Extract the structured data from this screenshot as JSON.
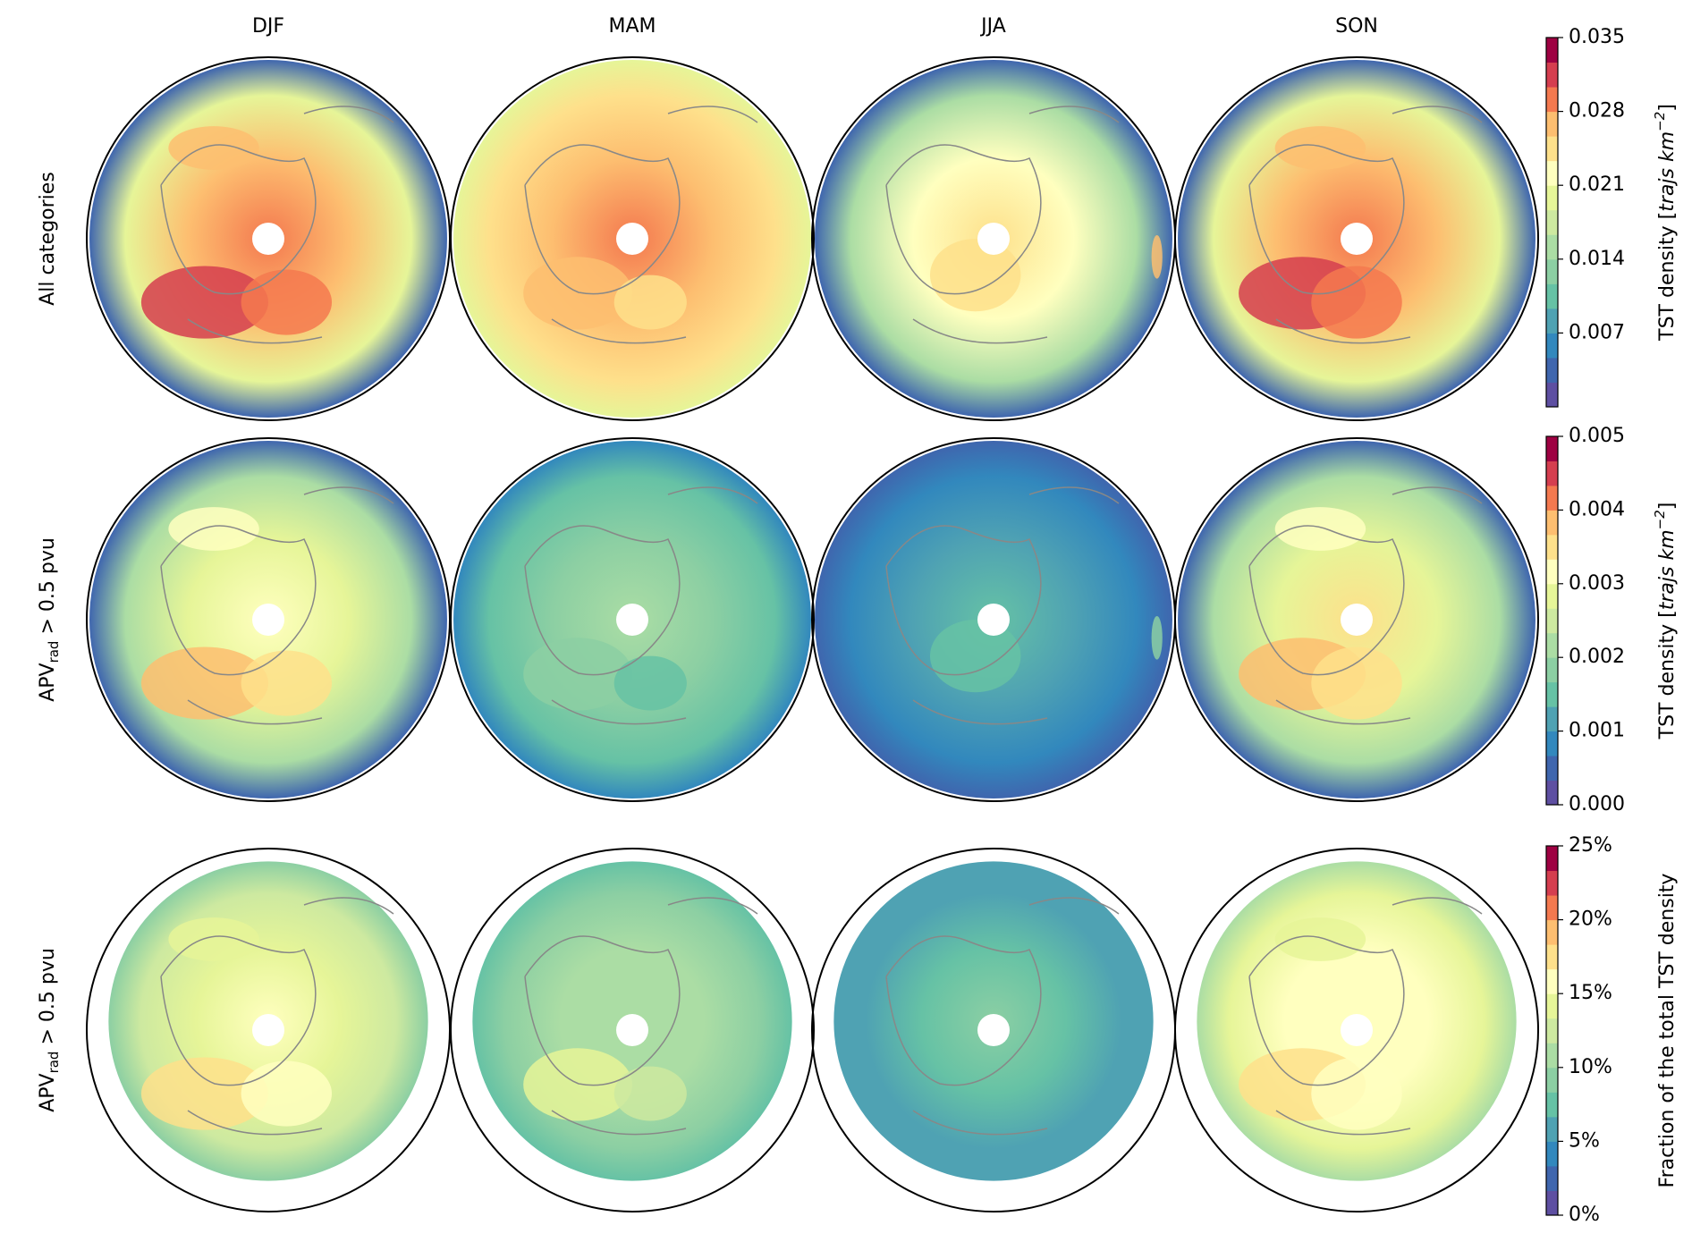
{
  "columns": [
    "DJF",
    "MAM",
    "JJA",
    "SON"
  ],
  "rows": [
    {
      "label": "All categories"
    },
    {
      "label": {
        "main": "APV",
        "subscript": "rad",
        "rest": " > 0.5 pvu"
      }
    },
    {
      "label": {
        "main": "APV",
        "subscript": "rad",
        "rest": " > 0.5 pvu"
      }
    }
  ],
  "colorbars": [
    {
      "label": {
        "prefix": "TST density [",
        "units": "trajs km",
        "exponent": "−2",
        "suffix": "]"
      },
      "lim": [
        0,
        0.035
      ],
      "ticks": [
        0.007,
        0.014,
        0.021,
        0.028,
        0.035
      ]
    },
    {
      "label": {
        "prefix": "TST density [",
        "units": "trajs km",
        "exponent": "−2",
        "suffix": "]"
      },
      "lim": [
        0,
        0.005
      ],
      "ticks": [
        {
          "value": 0,
          "label": "0.000"
        },
        0.001,
        0.002,
        0.003,
        0.004,
        0.005
      ]
    },
    {
      "label": "Fraction of the total TST density",
      "lim": [
        0,
        25
      ],
      "ticks": [
        {
          "value": 0,
          "label": "0%"
        },
        {
          "value": 5,
          "label": "5%"
        },
        {
          "value": 10,
          "label": "10%"
        },
        {
          "value": 15,
          "label": "15%"
        },
        {
          "value": 20,
          "label": "20%"
        },
        {
          "value": 25,
          "label": "25%"
        }
      ]
    }
  ]
}
